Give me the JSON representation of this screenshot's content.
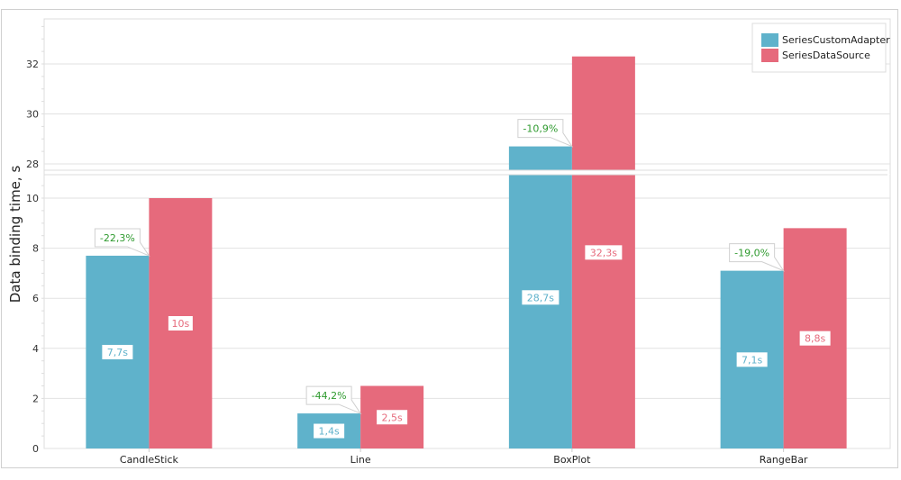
{
  "chart_data": {
    "type": "bar",
    "ylabel": "Data binding time, s",
    "categories": [
      "CandleStick",
      "Line",
      "BoxPlot",
      "RangeBar"
    ],
    "series": [
      {
        "name": "SeriesCustomAdapter",
        "color": "#5fb2cb",
        "values": [
          7.7,
          1.4,
          28.7,
          7.1
        ],
        "labels": [
          "7,7s",
          "1,4s",
          "28,7s",
          "7,1s"
        ]
      },
      {
        "name": "SeriesDataSource",
        "color": "#e66a7c",
        "values": [
          10,
          2.5,
          32.3,
          8.8
        ],
        "labels": [
          "10s",
          "2,5s",
          "32,3s",
          "8,8s"
        ]
      }
    ],
    "annotations": [
      "-22,3%",
      "-44,2%",
      "-10,9%",
      "-19,0%"
    ],
    "annotation_color": "#2e9a2e",
    "y_ticks": [
      0,
      2,
      4,
      6,
      8,
      10,
      28,
      30,
      32
    ],
    "y_tick_labels": [
      "0",
      "2",
      "4",
      "6",
      "8",
      "10",
      "28",
      "30",
      "32"
    ],
    "axis_break": [
      10.9,
      27.8
    ],
    "ylim": [
      0,
      33.8
    ],
    "grid": true,
    "legend": "top-right"
  }
}
